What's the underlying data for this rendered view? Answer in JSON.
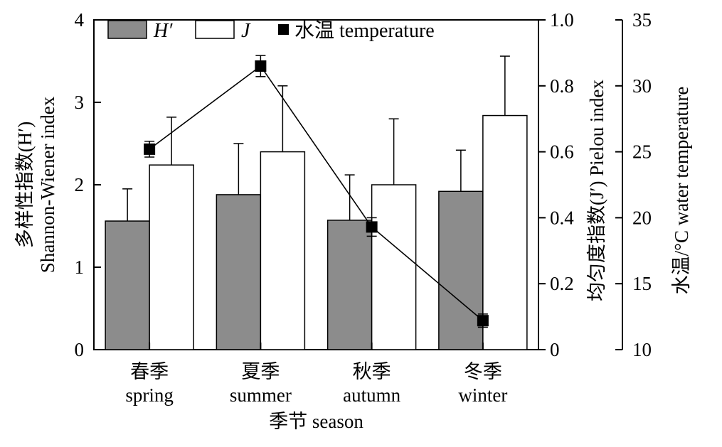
{
  "chart_data": {
    "type": "bar",
    "categories": [
      "春季\nspring",
      "夏季\nsummer",
      "秋季\nautumn",
      "冬季\nwinter"
    ],
    "category_lines": [
      [
        "春季",
        "spring"
      ],
      [
        "夏季",
        "summer"
      ],
      [
        "秋季",
        "autumn"
      ],
      [
        "冬季",
        "winter"
      ]
    ],
    "series": [
      {
        "name": "H′",
        "kind": "bar",
        "axis": "left",
        "color": "#8c8c8c",
        "values": [
          1.56,
          1.88,
          1.57,
          1.92
        ],
        "errors": [
          0.39,
          0.62,
          0.55,
          0.5
        ]
      },
      {
        "name": "J",
        "kind": "bar",
        "axis": "right1",
        "color": "#ffffff",
        "values": [
          0.56,
          0.6,
          0.5,
          0.71
        ],
        "errors": [
          0.145,
          0.2,
          0.2,
          0.18
        ]
      },
      {
        "name": "水温 temperature",
        "kind": "line",
        "axis": "right2",
        "color": "#000000",
        "values": [
          25.2,
          31.5,
          19.3,
          12.2
        ],
        "errors": [
          0.6,
          0.8,
          0.7,
          0.5
        ]
      }
    ],
    "xlabel": "季节 season",
    "ylabel_left_lines": [
      "多样性指数(H′)",
      "Shannon-Wiener index"
    ],
    "ylabel_right1": "均匀度指数(J′) Pielou index",
    "ylabel_right2": "水温/°C water temperature",
    "axes": {
      "left": {
        "min": 0,
        "max": 4,
        "ticks": [
          "0",
          "1",
          "2",
          "3",
          "4"
        ]
      },
      "right1": {
        "min": 0,
        "max": 1,
        "ticks": [
          "0",
          "0.2",
          "0.4",
          "0.6",
          "0.8",
          "1.0"
        ]
      },
      "right2": {
        "min": 10,
        "max": 35,
        "ticks": [
          "10",
          "15",
          "20",
          "25",
          "30",
          "35"
        ]
      }
    },
    "legend": {
      "position": "top-left",
      "entries": [
        "H′",
        "J",
        "水温 temperature"
      ]
    },
    "grid": false
  }
}
